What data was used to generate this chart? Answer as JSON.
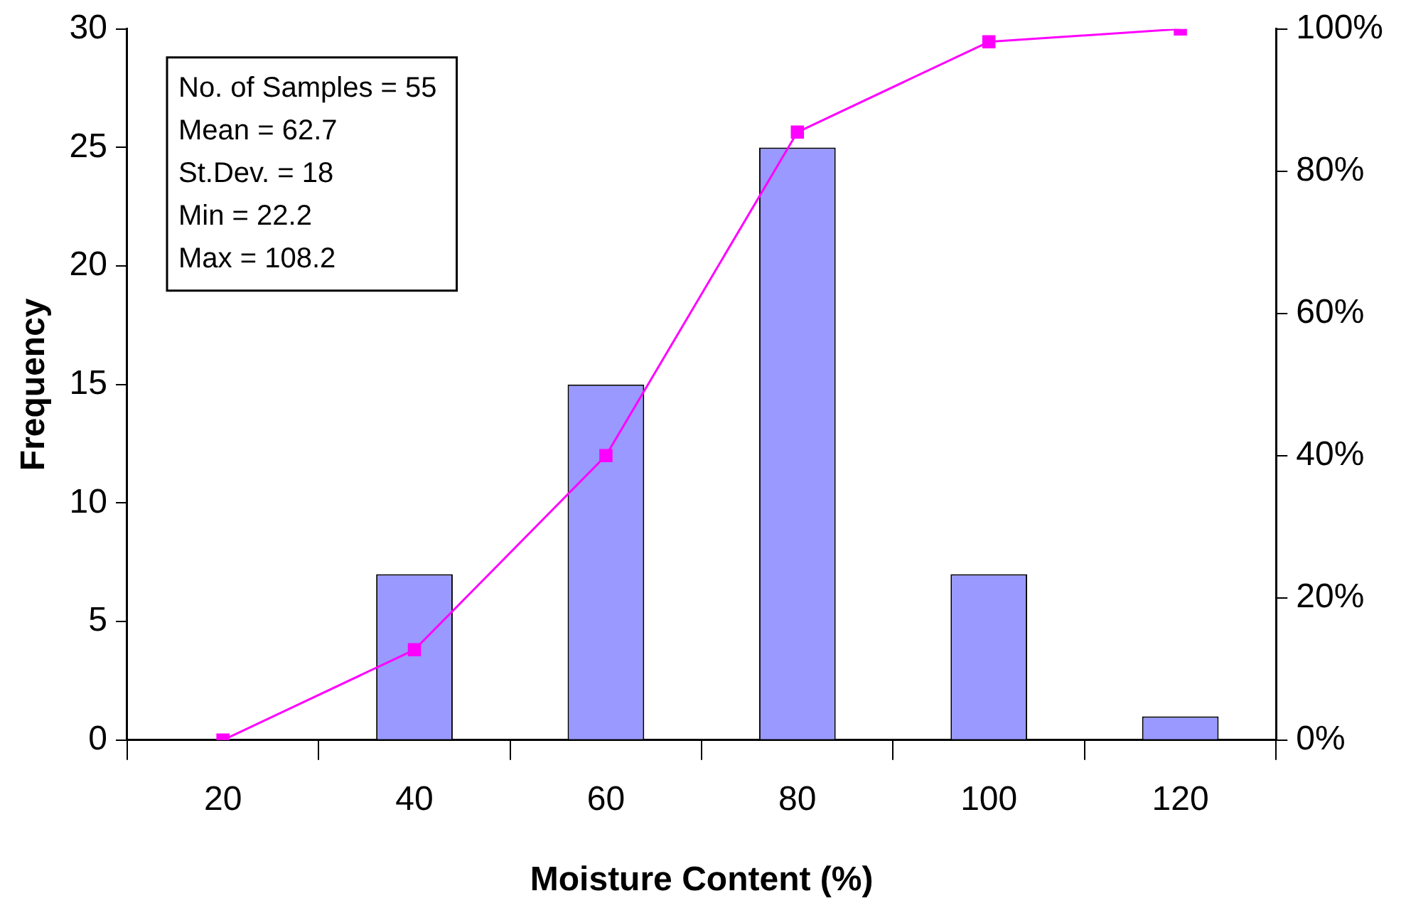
{
  "chart_data": {
    "type": "bar",
    "xlabel": "Moisture Content (%)",
    "ylabel": "Frequency",
    "categories": [
      "20",
      "40",
      "60",
      "80",
      "100",
      "120"
    ],
    "series": [
      {
        "color": "#9999ff",
        "values": [
          0,
          7,
          15,
          25,
          7,
          1
        ]
      },
      {
        "type": "line",
        "axis": "y2",
        "color": "#ff00ff",
        "marker": "square",
        "values": [
          0,
          12.7,
          40,
          85.5,
          98.2,
          100
        ]
      }
    ],
    "ylim": [
      0,
      30
    ],
    "yticks": [
      0,
      5,
      10,
      15,
      20,
      25,
      30
    ],
    "y2lim": [
      0,
      100
    ],
    "y2ticks": [
      {
        "value": 0,
        "label": "0%"
      },
      {
        "value": 20,
        "label": "20%"
      },
      {
        "value": 40,
        "label": "40%"
      },
      {
        "value": 60,
        "label": "60%"
      },
      {
        "value": 80,
        "label": "80%"
      },
      {
        "value": 100,
        "label": "100%"
      }
    ],
    "annotations": [
      "No. of Samples = 55",
      "Mean = 62.7",
      "St.Dev. = 18",
      "Min = 22.2",
      "Max = 108.2"
    ],
    "grid": false,
    "legend": false
  }
}
